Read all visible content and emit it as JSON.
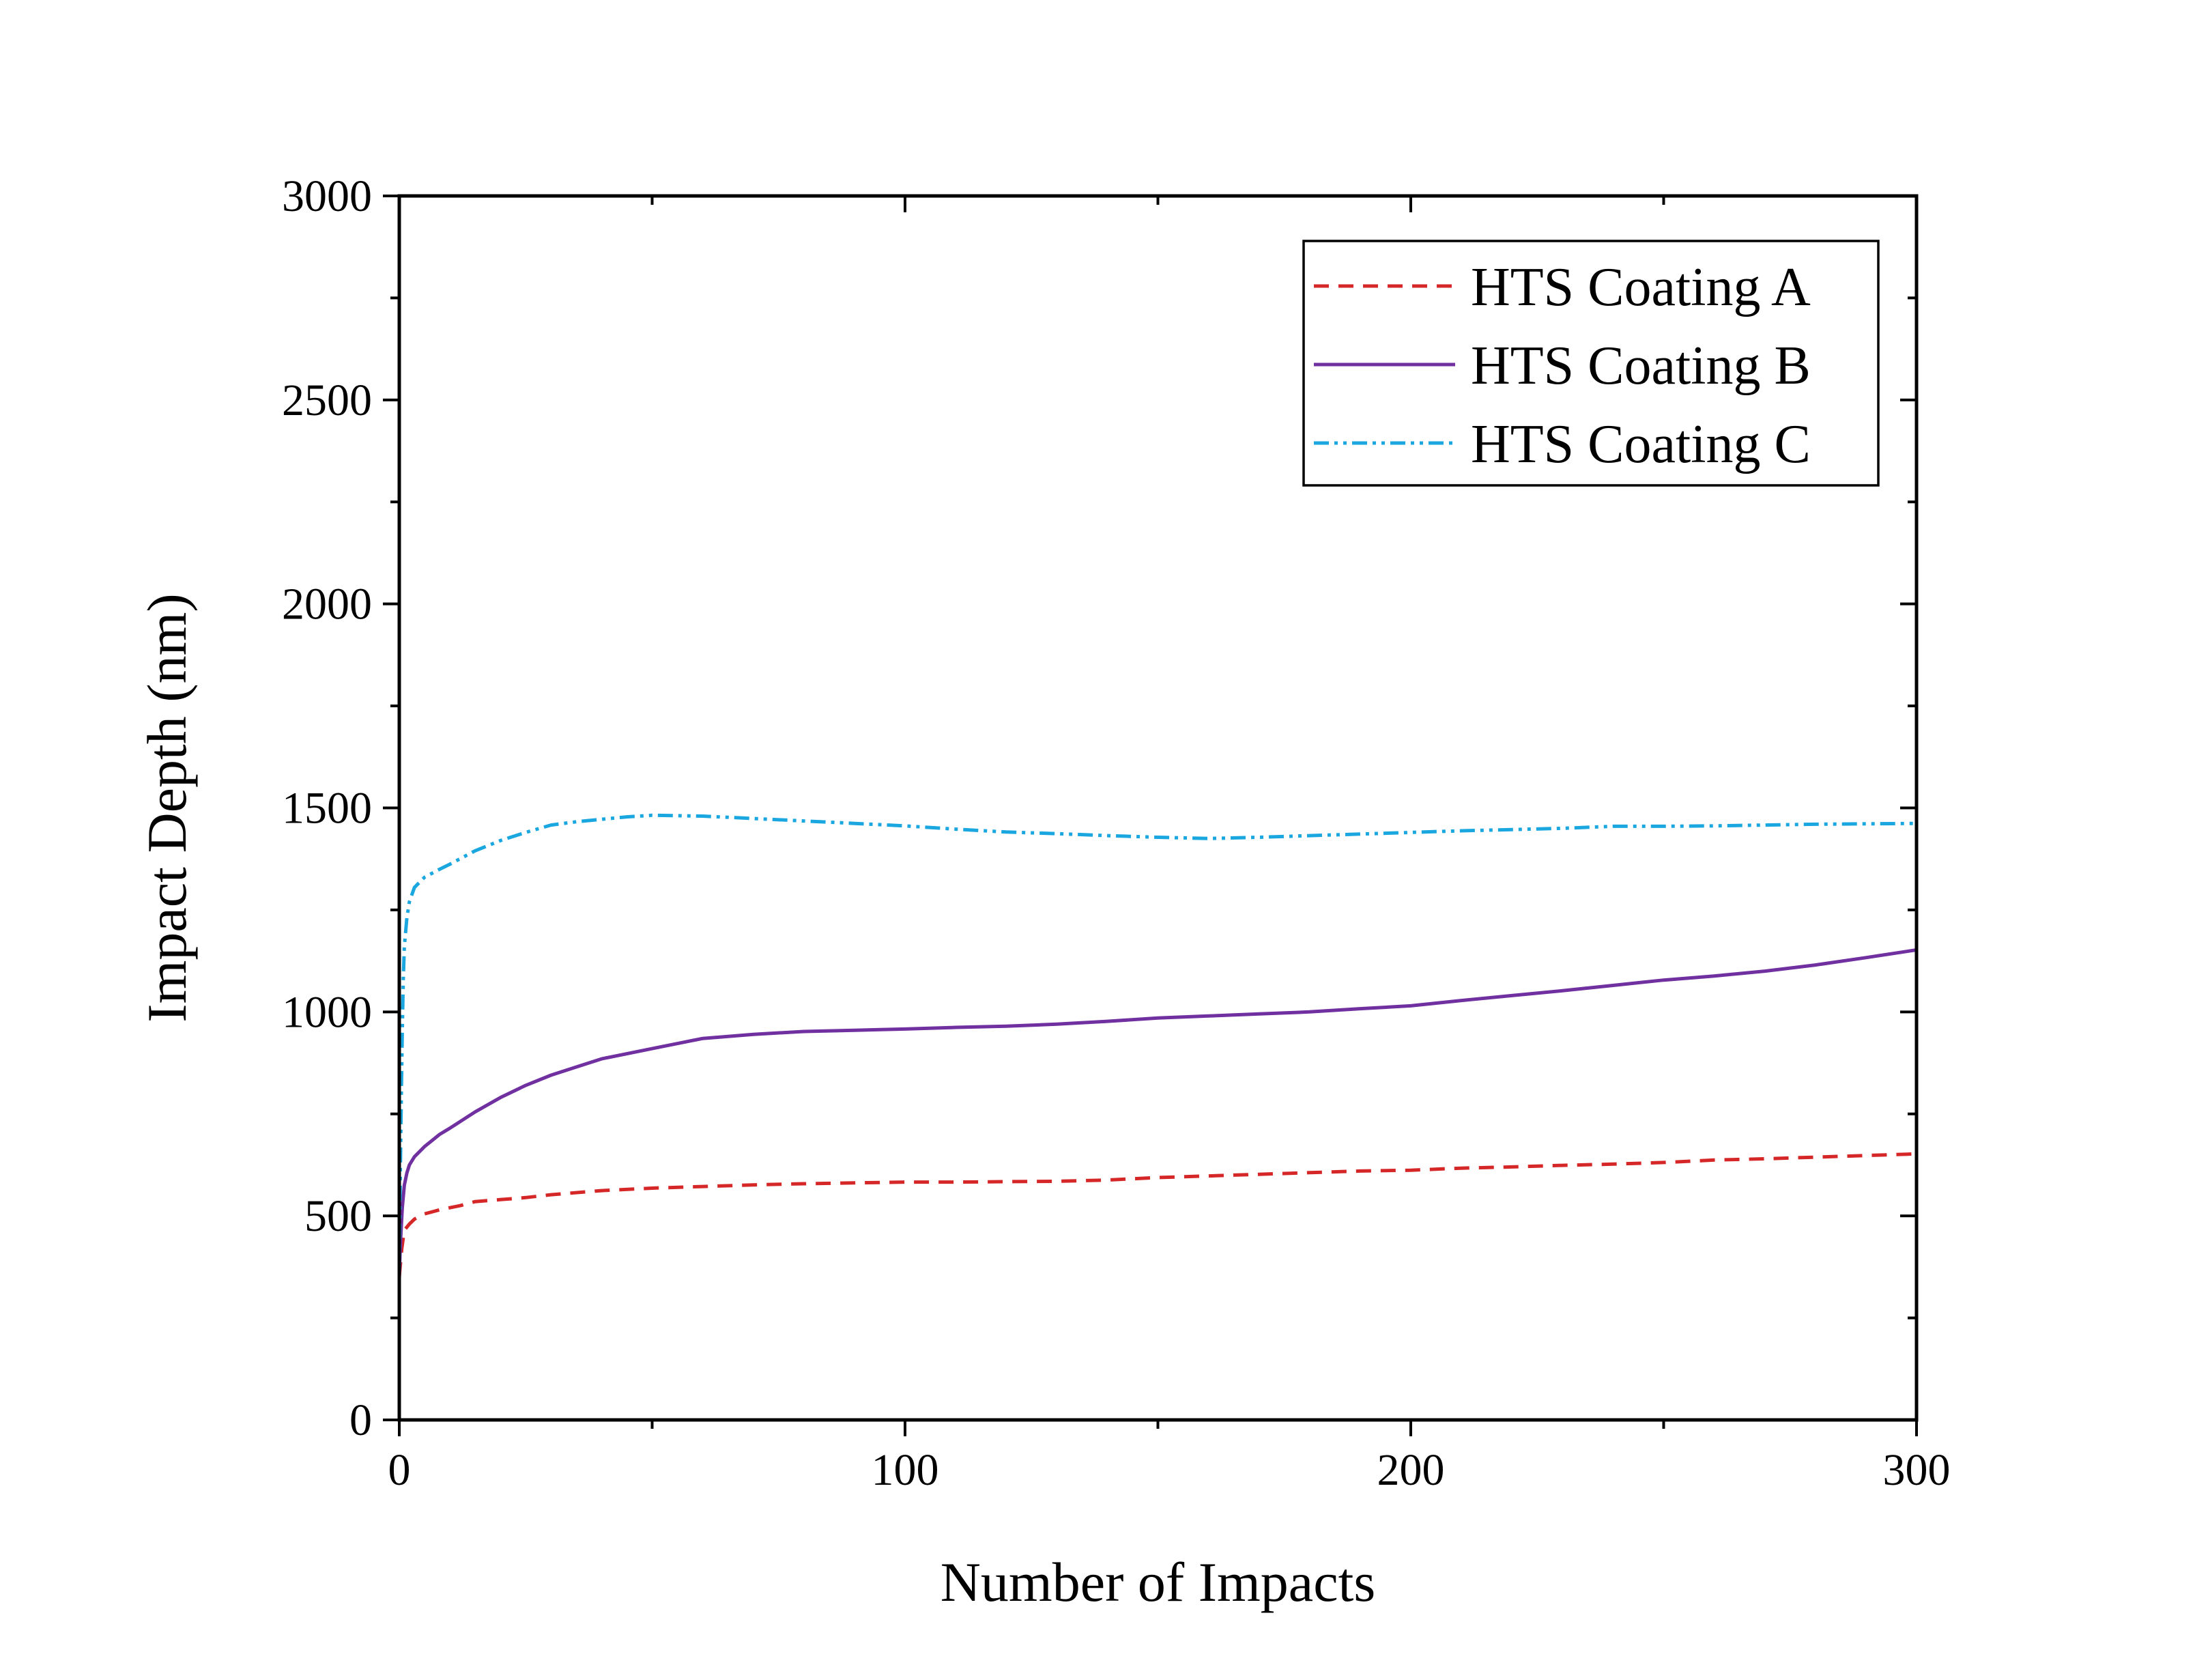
{
  "chart_data": {
    "type": "line",
    "title": "",
    "xlabel": "Number of Impacts",
    "ylabel": "Impact Depth (nm)",
    "xlim": [
      0,
      300
    ],
    "ylim": [
      0,
      3000
    ],
    "xticks": [
      0,
      100,
      200,
      300
    ],
    "yticks": [
      0,
      500,
      1000,
      1500,
      2000,
      2500,
      3000
    ],
    "x_minor_step": 50,
    "y_minor_step": 250,
    "grid": false,
    "legend_position": "top-right",
    "series": [
      {
        "name": "HTS Coating A",
        "color": "#d62728",
        "dash": "dashed",
        "x": [
          0,
          0.5,
          1,
          2,
          3,
          5,
          8,
          12,
          15,
          20,
          25,
          30,
          40,
          50,
          60,
          70,
          80,
          90,
          100,
          110,
          120,
          130,
          140,
          150,
          160,
          170,
          180,
          190,
          200,
          210,
          220,
          230,
          240,
          250,
          260,
          270,
          280,
          290,
          300
        ],
        "y": [
          350,
          420,
          465,
          480,
          492,
          505,
          515,
          525,
          535,
          540,
          545,
          552,
          562,
          568,
          572,
          576,
          579,
          581,
          583,
          583,
          584,
          585,
          588,
          594,
          598,
          602,
          606,
          610,
          612,
          617,
          620,
          624,
          627,
          631,
          637,
          640,
          644,
          648,
          652
        ]
      },
      {
        "name": "HTS Coating B",
        "color": "#7030a0",
        "dash": "solid",
        "x": [
          0,
          0.3,
          0.6,
          1,
          1.5,
          2,
          3,
          5,
          8,
          10,
          15,
          20,
          25,
          30,
          35,
          40,
          50,
          60,
          70,
          80,
          90,
          100,
          110,
          120,
          130,
          140,
          150,
          160,
          170,
          180,
          190,
          200,
          210,
          220,
          230,
          240,
          250,
          260,
          270,
          280,
          290,
          300
        ],
        "y": [
          360,
          450,
          520,
          575,
          605,
          625,
          645,
          670,
          700,
          715,
          755,
          790,
          820,
          845,
          865,
          885,
          910,
          935,
          945,
          952,
          955,
          958,
          962,
          965,
          970,
          977,
          985,
          990,
          995,
          1000,
          1008,
          1015,
          1028,
          1040,
          1052,
          1065,
          1078,
          1088,
          1100,
          1115,
          1133,
          1152
        ]
      },
      {
        "name": "HTS Coating C",
        "color": "#1aa7e0",
        "dash": "dash-dot-dot",
        "x": [
          0,
          0.2,
          0.4,
          0.6,
          0.8,
          1,
          1.5,
          2,
          3,
          5,
          8,
          10,
          15,
          20,
          25,
          30,
          35,
          40,
          45,
          50,
          60,
          70,
          80,
          90,
          100,
          110,
          120,
          130,
          140,
          150,
          160,
          170,
          180,
          190,
          200,
          210,
          220,
          230,
          240,
          250,
          260,
          270,
          280,
          290,
          300
        ],
        "y": [
          350,
          600,
          800,
          950,
          1080,
          1160,
          1230,
          1270,
          1305,
          1330,
          1350,
          1362,
          1395,
          1420,
          1440,
          1458,
          1466,
          1472,
          1478,
          1482,
          1480,
          1474,
          1468,
          1462,
          1456,
          1448,
          1441,
          1437,
          1432,
          1428,
          1425,
          1428,
          1432,
          1436,
          1440,
          1444,
          1447,
          1450,
          1455,
          1455,
          1456,
          1458,
          1460,
          1461,
          1462
        ]
      }
    ]
  }
}
